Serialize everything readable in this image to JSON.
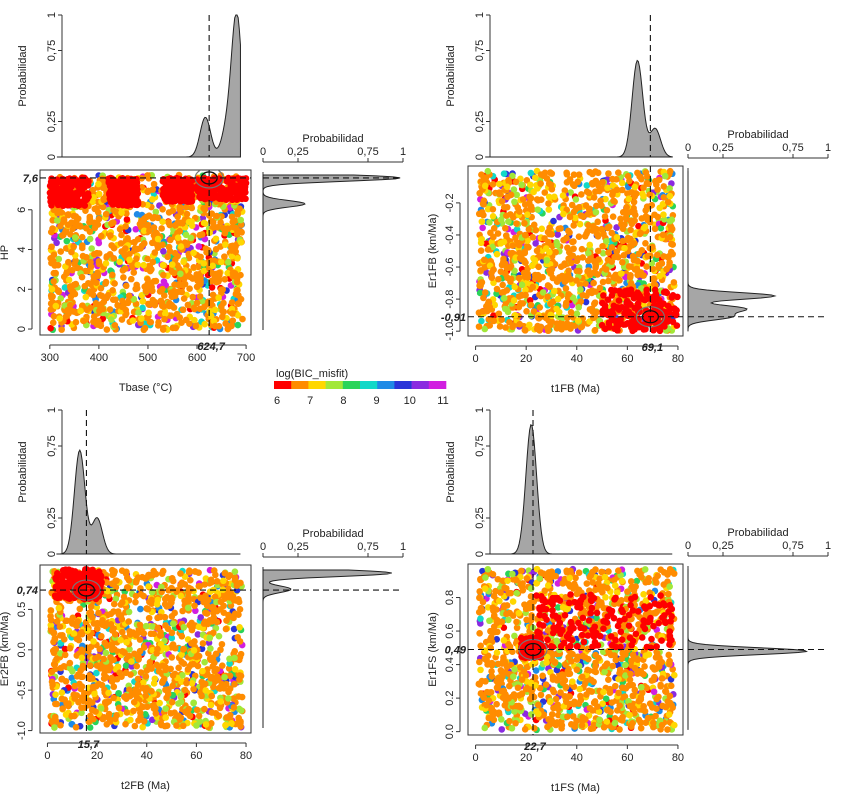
{
  "colorbar": {
    "title": "log(BIC_misfit)",
    "ticks": [
      "6",
      "7",
      "8",
      "9",
      "10",
      "11"
    ],
    "colors": [
      "#ff0000",
      "#ff8c00",
      "#ffd700",
      "#a2e838",
      "#2ad45a",
      "#12d8c8",
      "#1f8ae6",
      "#2a34d8",
      "#8a2ae0",
      "#d11fe0"
    ]
  },
  "chart_data": [
    {
      "type": "scatter",
      "panel": "top-left",
      "xlabel": "Tbase (°C)",
      "ylabel": "HP",
      "xlim": [
        280,
        710
      ],
      "ylim": [
        -0.3,
        8.0
      ],
      "xticks": [
        "300",
        "400",
        "500",
        "600",
        "700"
      ],
      "yticks": [
        "0",
        "2",
        "4",
        "6"
      ],
      "best_x": 624.7,
      "best_y": 7.6,
      "best_x_label": "624,7",
      "best_y_label": "7,6",
      "red_regions": [
        [
          300,
          380,
          6.2,
          7.6
        ],
        [
          420,
          480,
          6.2,
          7.6
        ],
        [
          530,
          590,
          6.4,
          7.6
        ],
        [
          600,
          700,
          6.5,
          7.6
        ]
      ],
      "marginal_x": {
        "ylabel": "Probabilidad",
        "yticks": [
          "0",
          "0,25",
          "0,75",
          "1"
        ],
        "peaks": [
          {
            "x": 617,
            "h": 0.28
          },
          {
            "x": 660,
            "h": 0.18
          },
          {
            "x": 681,
            "h": 1.0
          }
        ]
      },
      "marginal_y": {
        "xlabel": "Probabilidad",
        "xticks": [
          "0",
          "0,25",
          "0,75",
          "1"
        ],
        "peaks": [
          {
            "y": 7.6,
            "h": 0.98
          },
          {
            "y": 6.3,
            "h": 0.3
          }
        ]
      }
    },
    {
      "type": "scatter",
      "panel": "top-right",
      "xlabel": "t1FB (Ma)",
      "ylabel": "Er1FB (km/Ma)",
      "xlim": [
        -3,
        82
      ],
      "ylim": [
        -1.03,
        0.03
      ],
      "xticks": [
        "0",
        "20",
        "40",
        "60",
        "80"
      ],
      "yticks": [
        "-1.0",
        "-0.8",
        "-0.6",
        "-0.4",
        "-0.2"
      ],
      "best_x": 69.1,
      "best_y": -0.91,
      "best_x_label": "69,1",
      "best_y_label": "-0,91",
      "red_regions": [
        [
          50,
          80,
          -1.0,
          -0.74
        ]
      ],
      "marginal_x": {
        "ylabel": "Probabilidad",
        "yticks": [
          "0",
          "0,25",
          "0,75",
          "1"
        ],
        "peaks": [
          {
            "x": 64,
            "h": 0.68
          },
          {
            "x": 71,
            "h": 0.2
          }
        ]
      },
      "marginal_y": {
        "xlabel": "Probabilidad",
        "xticks": [
          "0",
          "0,25",
          "0,75",
          "1"
        ],
        "peaks": [
          {
            "y": -0.78,
            "h": 0.62
          },
          {
            "y": -0.86,
            "h": 0.4
          },
          {
            "y": -0.91,
            "h": 0.3
          }
        ]
      }
    },
    {
      "type": "scatter",
      "panel": "bottom-left",
      "xlabel": "t2FB (Ma)",
      "ylabel": "Er2FB (km/Ma)",
      "xlim": [
        -3,
        82
      ],
      "ylim": [
        -1.03,
        1.05
      ],
      "xticks": [
        "0",
        "20",
        "40",
        "60",
        "80"
      ],
      "yticks": [
        "-1.0",
        "-0.5",
        "0.0",
        "0.5"
      ],
      "best_x": 15.7,
      "best_y": 0.74,
      "best_x_label": "15,7",
      "best_y_label": "0,74",
      "red_regions": [
        [
          3,
          22,
          0.62,
          1.0
        ]
      ],
      "marginal_x": {
        "ylabel": "Probabilidad",
        "yticks": [
          "0",
          "0,25",
          "0,75",
          "1"
        ],
        "peaks": [
          {
            "x": 13,
            "h": 0.72
          },
          {
            "x": 20,
            "h": 0.25
          }
        ]
      },
      "marginal_y": {
        "xlabel": "Probabilidad",
        "xticks": [
          "0",
          "0,25",
          "0,75",
          "1"
        ],
        "peaks": [
          {
            "y": 0.95,
            "h": 0.92
          },
          {
            "y": 0.75,
            "h": 0.2
          }
        ]
      }
    },
    {
      "type": "scatter",
      "panel": "bottom-right",
      "xlabel": "t1FS (Ma)",
      "ylabel": "Er1FS (km/Ma)",
      "xlim": [
        -3,
        82
      ],
      "ylim": [
        -0.02,
        1.0
      ],
      "xticks": [
        "0",
        "20",
        "40",
        "60",
        "80"
      ],
      "yticks": [
        "0.0",
        "0.2",
        "0.4",
        "0.6",
        "0.8"
      ],
      "best_x": 22.7,
      "best_y": 0.49,
      "best_x_label": "22,7",
      "best_y_label": "0,49",
      "red_regions": [
        [
          24,
          78,
          0.5,
          0.82
        ],
        [
          18,
          26,
          0.44,
          0.56
        ]
      ],
      "marginal_x": {
        "ylabel": "Probabilidad",
        "yticks": [
          "0",
          "0,25",
          "0,75",
          "1"
        ],
        "peaks": [
          {
            "x": 22,
            "h": 0.9
          }
        ]
      },
      "marginal_y": {
        "xlabel": "Probabilidad",
        "xticks": [
          "0",
          "0,25",
          "0,75",
          "1"
        ],
        "peaks": [
          {
            "y": 0.48,
            "h": 0.85
          }
        ]
      }
    }
  ]
}
